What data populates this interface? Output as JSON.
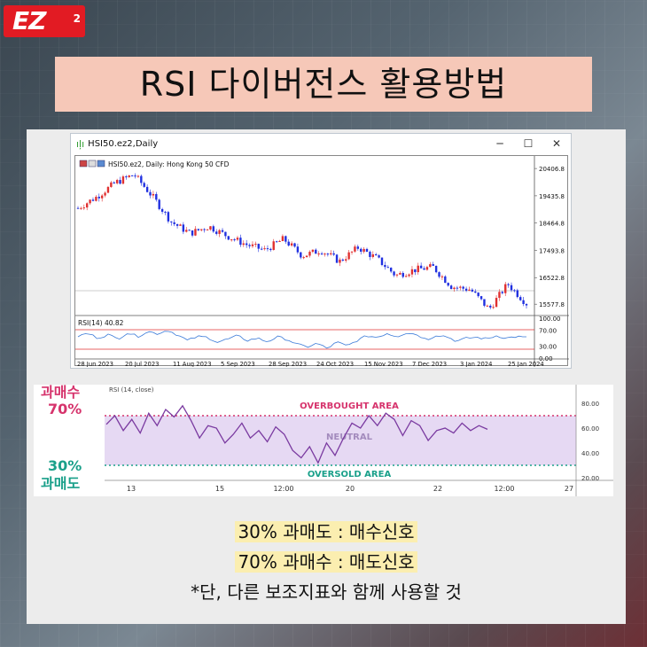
{
  "brand": {
    "logo_text": "EZ",
    "logo_sup": "2"
  },
  "title": "RSI 다이버전스 활용방법",
  "window": {
    "title": "HSI50.ez2,Daily",
    "controls": [
      "─",
      "☐",
      "✕"
    ],
    "legend": "HSI50.ez2, Daily:  Hong Kong 50 CFD",
    "price_ticks": [
      "20406.8",
      "19435.8",
      "18464.8",
      "17493.8",
      "16522.8",
      "15577.8"
    ],
    "rsi_label": "RSI(14) 40.82",
    "rsi_ticks": [
      "100.00",
      "70.00",
      "30.00",
      "0.00"
    ],
    "date_ticks": [
      "28 Jun 2023",
      "20 Jul 2023",
      "11 Aug 2023",
      "5 Sep 2023",
      "28 Sep 2023",
      "24 Oct 2023",
      "15 Nov 2023",
      "7 Dec 2023",
      "3 Jan 2024",
      "25 Jan 2024"
    ]
  },
  "rsi_detail": {
    "header": "RSI (14, close)",
    "overbought_label": "OVERBOUGHT AREA",
    "neutral_label": "NEUTRAL",
    "oversold_label": "OVERSOLD AREA",
    "left_top_line1": "과매수",
    "left_top_line2": "70%",
    "left_bottom_line1": "30%",
    "left_bottom_line2": "과매도",
    "y_ticks": [
      "80.00",
      "60.00",
      "40.00",
      "20.00"
    ],
    "x_ticks": [
      "13",
      "15",
      "12:00",
      "20",
      "22",
      "12:00",
      "27"
    ]
  },
  "captions": {
    "line1": "30% 과매도 : 매수신호",
    "line2": "70% 과매수 : 매도신호",
    "line3": "*단, 다른 보조지표와 함께 사용할 것"
  },
  "colors": {
    "logo": "#e21b23",
    "title_bg": "#f6c8b8",
    "caption_highlight": "#fbeeb0",
    "overbought": "#d6336c",
    "oversold": "#1aa08a",
    "neutral_band": "#e6d9f3",
    "rsi_line": "#7a3aa0",
    "bull_candle": "#e03030",
    "bear_candle": "#2030e0"
  },
  "chart_data": [
    {
      "type": "line",
      "title": "HSI50.ez2, Daily: Hong Kong 50 CFD",
      "x_labels": [
        "28 Jun 2023",
        "20 Jul 2023",
        "11 Aug 2023",
        "5 Sep 2023",
        "28 Sep 2023",
        "24 Oct 2023",
        "15 Nov 2023",
        "7 Dec 2023",
        "3 Jan 2024",
        "25 Jan 2024"
      ],
      "series": [
        {
          "name": "",
          "values": [
            19000,
            19400,
            19900,
            20200,
            19400,
            18500,
            18100,
            18350,
            18000,
            17700,
            17500,
            17900,
            17300,
            17500,
            17100,
            17600,
            17200,
            16600,
            16800,
            16900,
            16200,
            16100,
            15400,
            16300,
            15600
          ]
        }
      ],
      "ylim": [
        15300,
        20600
      ]
    },
    {
      "type": "line",
      "title": "RSI (14, close)",
      "x_labels": [
        "13",
        "15",
        "12:00",
        "20",
        "22",
        "12:00",
        "27"
      ],
      "ylim": [
        20,
        90
      ],
      "series": [
        {
          "name": "",
          "values": [
            63,
            70,
            58,
            67,
            56,
            72,
            62,
            75,
            69,
            78,
            66,
            52,
            62,
            60,
            48,
            55,
            64,
            52,
            58,
            49,
            61,
            55,
            42,
            36,
            45,
            32,
            48,
            38,
            52,
            64,
            60,
            70,
            62,
            72,
            67,
            54,
            66,
            62,
            50,
            58,
            60,
            56,
            64,
            58,
            62,
            59
          ]
        }
      ],
      "reference_lines": [
        70,
        30
      ]
    }
  ]
}
